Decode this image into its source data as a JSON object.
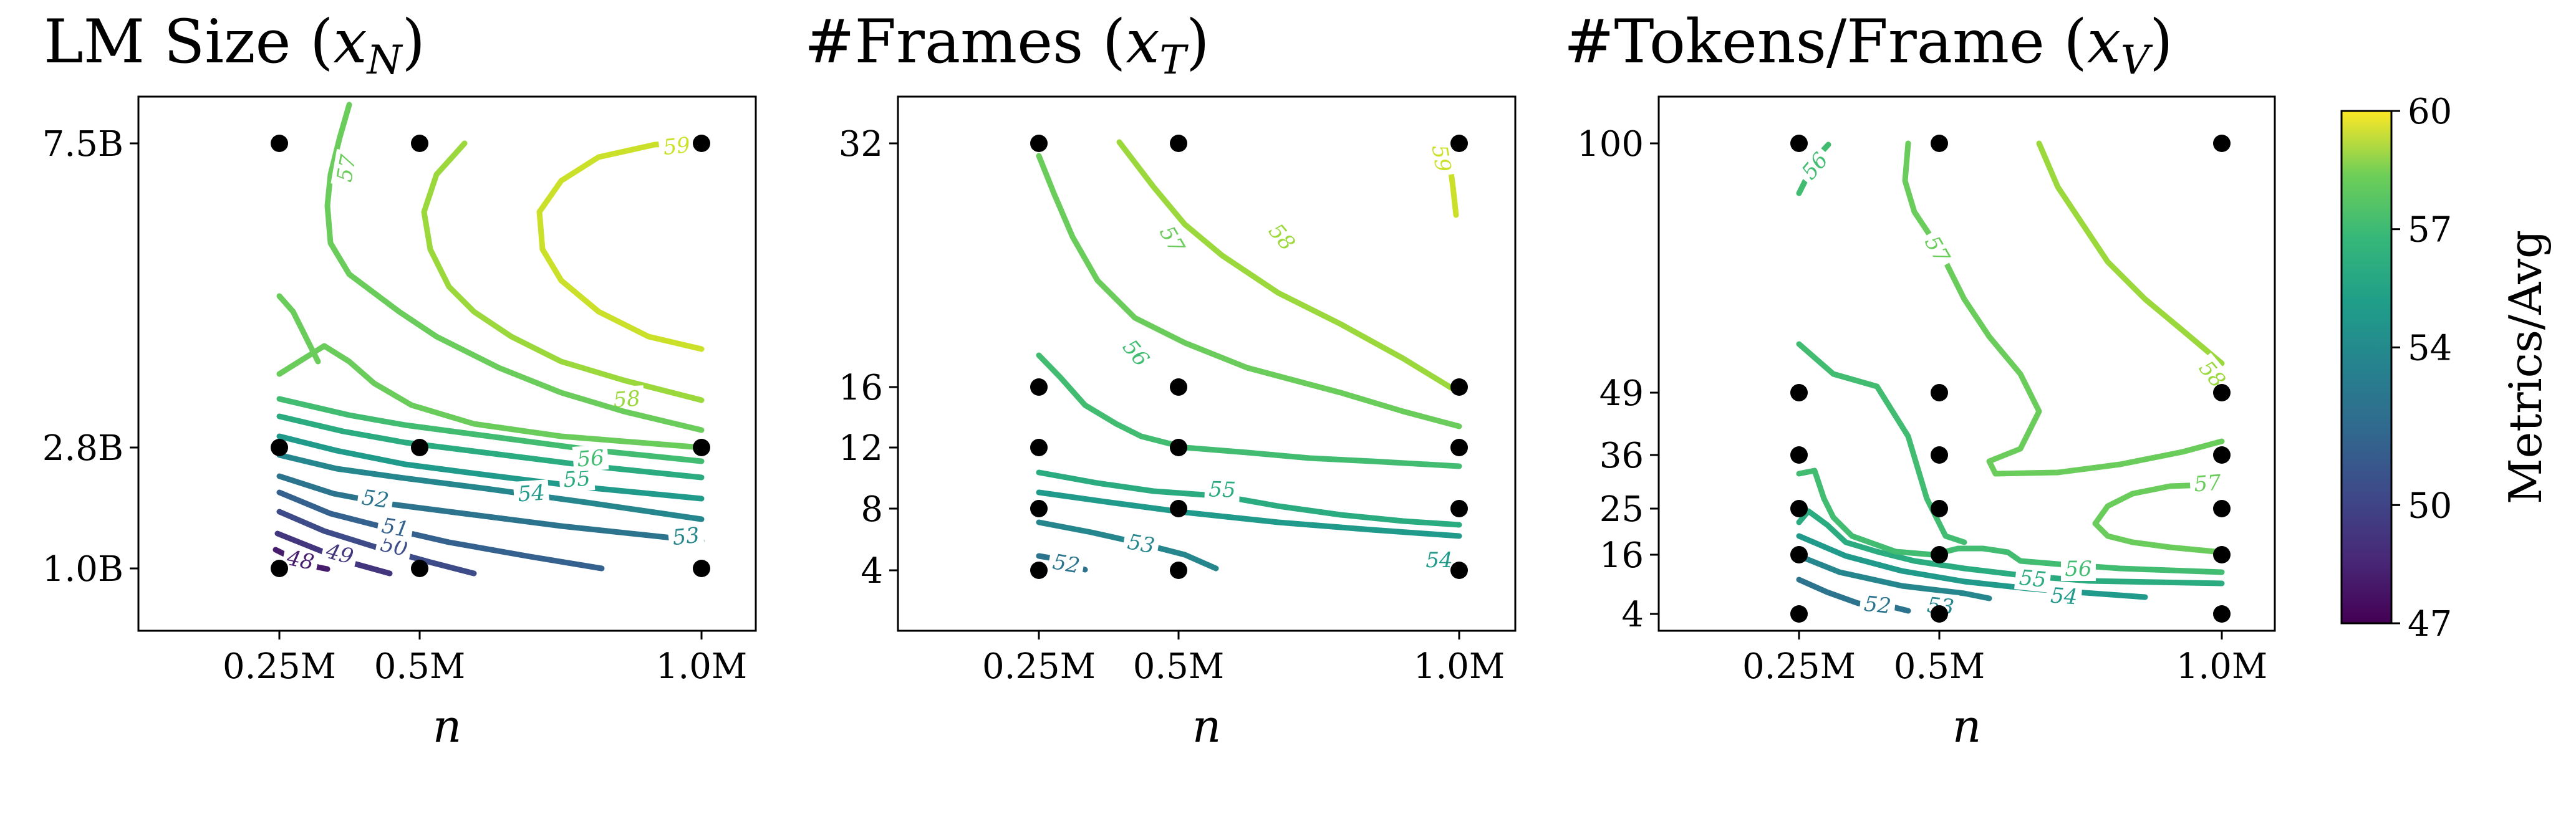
{
  "colorbar": {
    "label": "Metrics/Avg",
    "min": 47,
    "max": 60,
    "ticks": [
      {
        "value": 47,
        "label": "47"
      },
      {
        "value": 50,
        "label": "50"
      },
      {
        "value": 54,
        "label": "54"
      },
      {
        "value": 57,
        "label": "57"
      },
      {
        "value": 60,
        "label": "60"
      }
    ],
    "colormap": "viridis"
  },
  "chart_data": [
    {
      "type": "contour",
      "title": {
        "main": "LM Size (",
        "var": "x",
        "sub": "N",
        "close": ")"
      },
      "xlabel": "n",
      "ylabel": "",
      "x_ticks": [
        {
          "value": 0.25,
          "label": "0.25M"
        },
        {
          "value": 0.5,
          "label": "0.5M"
        },
        {
          "value": 1.0,
          "label": "1.0M"
        }
      ],
      "y_ticks": [
        {
          "value": 1.0,
          "label": "1.0B"
        },
        {
          "value": 2.8,
          "label": "2.8B"
        },
        {
          "value": 7.5,
          "label": "7.5B"
        }
      ],
      "points": [
        {
          "x": 0.25,
          "y": 7.5
        },
        {
          "x": 0.5,
          "y": 7.5
        },
        {
          "x": 1.0,
          "y": 7.5
        },
        {
          "x": 0.25,
          "y": 2.8
        },
        {
          "x": 0.5,
          "y": 2.8
        },
        {
          "x": 1.0,
          "y": 2.8
        },
        {
          "x": 0.25,
          "y": 1.0
        },
        {
          "x": 0.5,
          "y": 1.0
        },
        {
          "x": 1.0,
          "y": 1.0
        }
      ],
      "contour_levels": [
        {
          "level": 48,
          "label": "48"
        },
        {
          "level": 49,
          "label": "49"
        },
        {
          "level": 50,
          "label": "50"
        },
        {
          "level": 51,
          "label": "51"
        },
        {
          "level": 52,
          "label": "52"
        },
        {
          "level": 53,
          "label": "53"
        },
        {
          "level": 54,
          "label": "54"
        },
        {
          "level": 55,
          "label": "55"
        },
        {
          "level": 56,
          "label": "56"
        },
        {
          "level": 57,
          "label": "57"
        },
        {
          "level": 58,
          "label": "58"
        },
        {
          "level": 59,
          "label": "59"
        }
      ]
    },
    {
      "type": "contour",
      "title": {
        "main": "#Frames (",
        "var": "x",
        "sub": "T",
        "close": ")"
      },
      "xlabel": "n",
      "ylabel": "",
      "x_ticks": [
        {
          "value": 0.25,
          "label": "0.25M"
        },
        {
          "value": 0.5,
          "label": "0.5M"
        },
        {
          "value": 1.0,
          "label": "1.0M"
        }
      ],
      "y_ticks": [
        {
          "value": 4,
          "label": "4"
        },
        {
          "value": 8,
          "label": "8"
        },
        {
          "value": 12,
          "label": "12"
        },
        {
          "value": 16,
          "label": "16"
        },
        {
          "value": 32,
          "label": "32"
        }
      ],
      "points": [
        {
          "x": 0.25,
          "y": 32
        },
        {
          "x": 0.5,
          "y": 32
        },
        {
          "x": 1.0,
          "y": 32
        },
        {
          "x": 0.25,
          "y": 16
        },
        {
          "x": 0.5,
          "y": 16
        },
        {
          "x": 1.0,
          "y": 16
        },
        {
          "x": 0.25,
          "y": 12
        },
        {
          "x": 0.5,
          "y": 12
        },
        {
          "x": 1.0,
          "y": 12
        },
        {
          "x": 0.25,
          "y": 8
        },
        {
          "x": 0.5,
          "y": 8
        },
        {
          "x": 1.0,
          "y": 8
        },
        {
          "x": 0.25,
          "y": 4
        },
        {
          "x": 0.5,
          "y": 4
        },
        {
          "x": 1.0,
          "y": 4
        }
      ],
      "contour_levels": [
        {
          "level": 52,
          "label": "52"
        },
        {
          "level": 53,
          "label": "53"
        },
        {
          "level": 54,
          "label": "54"
        },
        {
          "level": 55,
          "label": "55"
        },
        {
          "level": 56,
          "label": "56"
        },
        {
          "level": 57,
          "label": "57"
        },
        {
          "level": 58,
          "label": "58"
        },
        {
          "level": 59,
          "label": "59"
        }
      ]
    },
    {
      "type": "contour",
      "title": {
        "main": "#Tokens/Frame (",
        "var": "x",
        "sub": "V",
        "close": ")"
      },
      "xlabel": "n",
      "ylabel": "",
      "x_ticks": [
        {
          "value": 0.25,
          "label": "0.25M"
        },
        {
          "value": 0.5,
          "label": "0.5M"
        },
        {
          "value": 1.0,
          "label": "1.0M"
        }
      ],
      "y_ticks": [
        {
          "value": 4,
          "label": "4"
        },
        {
          "value": 16,
          "label": "16"
        },
        {
          "value": 25,
          "label": "25"
        },
        {
          "value": 36,
          "label": "36"
        },
        {
          "value": 49,
          "label": "49"
        },
        {
          "value": 100,
          "label": "100"
        }
      ],
      "points": [
        {
          "x": 0.25,
          "y": 100
        },
        {
          "x": 0.5,
          "y": 100
        },
        {
          "x": 1.0,
          "y": 100
        },
        {
          "x": 0.25,
          "y": 49
        },
        {
          "x": 0.5,
          "y": 49
        },
        {
          "x": 1.0,
          "y": 49
        },
        {
          "x": 0.25,
          "y": 36
        },
        {
          "x": 0.5,
          "y": 36
        },
        {
          "x": 1.0,
          "y": 36
        },
        {
          "x": 0.25,
          "y": 25
        },
        {
          "x": 0.5,
          "y": 25
        },
        {
          "x": 1.0,
          "y": 25
        },
        {
          "x": 0.25,
          "y": 16
        },
        {
          "x": 0.5,
          "y": 16
        },
        {
          "x": 1.0,
          "y": 16
        },
        {
          "x": 0.25,
          "y": 4
        },
        {
          "x": 0.5,
          "y": 4
        },
        {
          "x": 1.0,
          "y": 4
        }
      ],
      "contour_levels": [
        {
          "level": 52,
          "label": "52"
        },
        {
          "level": 53,
          "label": "53"
        },
        {
          "level": 54,
          "label": "54"
        },
        {
          "level": 55,
          "label": "55"
        },
        {
          "level": 56,
          "label": "56"
        },
        {
          "level": 57,
          "label": "57"
        },
        {
          "level": 58,
          "label": "58"
        }
      ]
    }
  ]
}
